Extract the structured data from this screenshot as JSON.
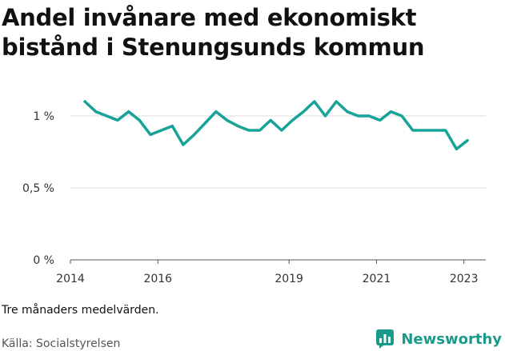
{
  "title": "Andel invånare med ekonomiskt bistånd i Stenungsunds kommun",
  "note": "Tre månaders medelvärden.",
  "source": "Källa: Socialstyrelsen",
  "brand": {
    "name": "Newsworthy",
    "icon": "bar-chart-badge-icon",
    "color": "#1a9a8a"
  },
  "chart_data": {
    "type": "line",
    "title": "Andel invånare med ekonomiskt bistånd i Stenungsunds kommun",
    "xlabel": "",
    "ylabel": "",
    "xlim": [
      2014,
      2023.5
    ],
    "ylim": [
      0,
      1.15
    ],
    "x_ticks": [
      {
        "value": 2014,
        "label": "2014"
      },
      {
        "value": 2016,
        "label": "2016"
      },
      {
        "value": 2019,
        "label": "2019"
      },
      {
        "value": 2021,
        "label": "2021"
      },
      {
        "value": 2023,
        "label": "2023"
      }
    ],
    "y_ticks": [
      {
        "value": 0,
        "label": "0 %"
      },
      {
        "value": 0.5,
        "label": "0,5 %"
      },
      {
        "value": 1,
        "label": "1 %"
      }
    ],
    "grid": true,
    "color": "#17a398",
    "series": [
      {
        "name": "",
        "x": [
          2014.33,
          2014.58,
          2014.83,
          2015.08,
          2015.33,
          2015.58,
          2015.83,
          2016.08,
          2016.33,
          2016.58,
          2016.83,
          2017.08,
          2017.33,
          2017.58,
          2017.83,
          2018.08,
          2018.33,
          2018.58,
          2018.83,
          2019.08,
          2019.33,
          2019.58,
          2019.83,
          2020.08,
          2020.33,
          2020.58,
          2020.83,
          2021.08,
          2021.33,
          2021.58,
          2021.83,
          2022.08,
          2022.33,
          2022.58,
          2022.83,
          2023.08
        ],
        "values": [
          1.1,
          1.03,
          1.0,
          0.97,
          1.03,
          0.97,
          0.87,
          0.9,
          0.93,
          0.8,
          0.87,
          0.95,
          1.03,
          0.97,
          0.93,
          0.9,
          0.9,
          0.97,
          0.9,
          0.97,
          1.03,
          1.1,
          1.0,
          1.1,
          1.03,
          1.0,
          1.0,
          0.97,
          1.03,
          1.0,
          0.9,
          0.9,
          0.9,
          0.9,
          0.77,
          0.83
        ]
      }
    ]
  }
}
